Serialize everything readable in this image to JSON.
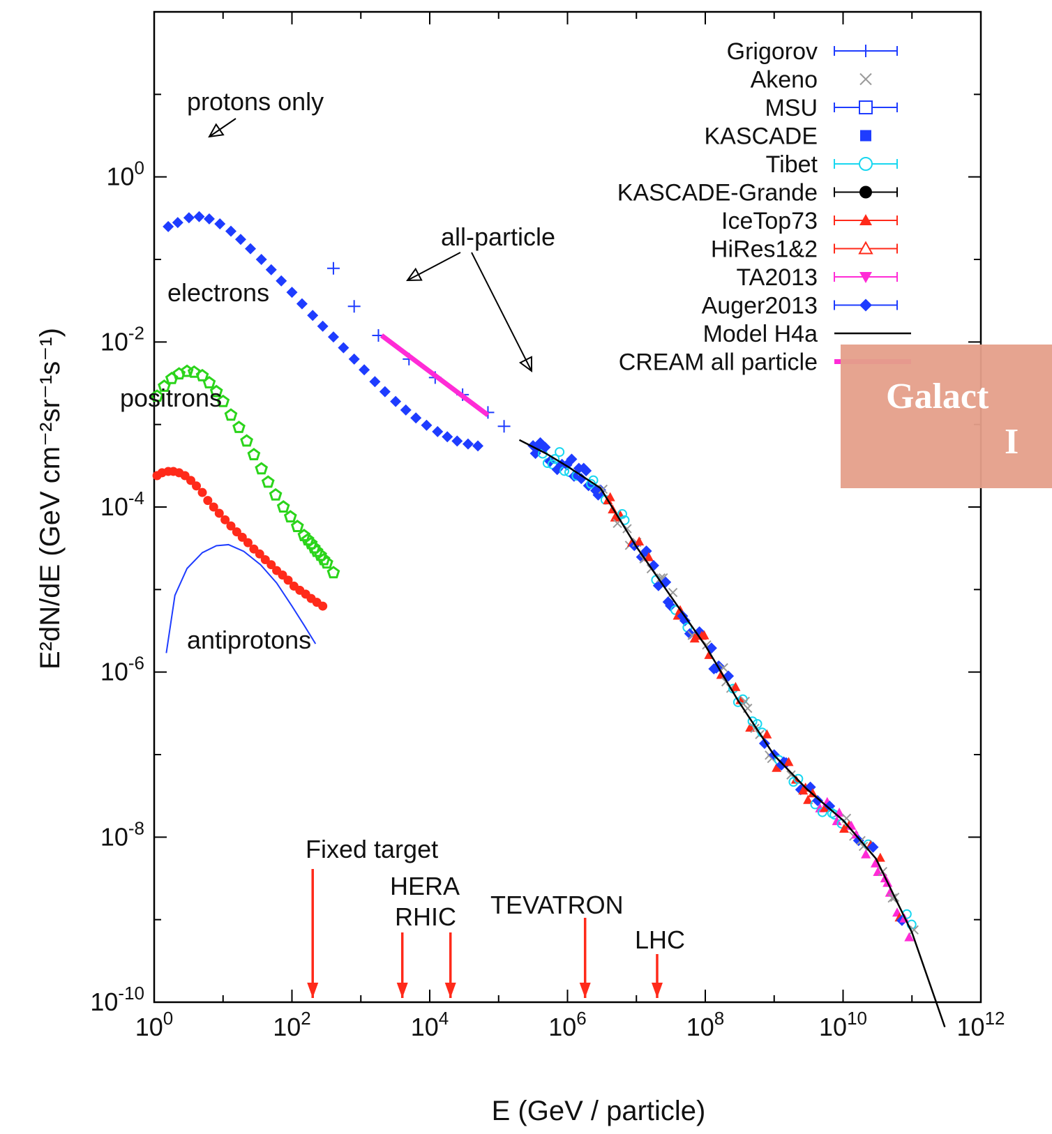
{
  "chart_data": {
    "type": "scatter",
    "xlabel": "E   (GeV / particle)",
    "ylabel": "E²dN/dE   (GeV cm⁻²sr⁻¹s⁻¹)",
    "x_scale": "log",
    "y_scale": "log",
    "xlim": [
      1,
      1000000000000.0
    ],
    "ylim": [
      1e-10,
      100.0
    ],
    "grid": false,
    "legend_position": "top-right",
    "x_ticks": [
      {
        "value": 1,
        "base": "10",
        "exp": "0"
      },
      {
        "value": 100,
        "base": "10",
        "exp": "2"
      },
      {
        "value": 10000,
        "base": "10",
        "exp": "4"
      },
      {
        "value": 1000000,
        "base": "10",
        "exp": "6"
      },
      {
        "value": 100000000,
        "base": "10",
        "exp": "8"
      },
      {
        "value": 10000000000,
        "base": "10",
        "exp": "10"
      },
      {
        "value": 1000000000000,
        "base": "10",
        "exp": "12"
      }
    ],
    "y_ticks": [
      {
        "value": 1,
        "base": "10",
        "exp": "0"
      },
      {
        "value": 0.01,
        "base": "10",
        "exp": "-2"
      },
      {
        "value": 0.0001,
        "base": "10",
        "exp": "-4"
      },
      {
        "value": 1e-06,
        "base": "10",
        "exp": "-6"
      },
      {
        "value": 1e-08,
        "base": "10",
        "exp": "-8"
      },
      {
        "value": 1e-10,
        "base": "10",
        "exp": "-10"
      }
    ],
    "legend": [
      {
        "name": "Grigorov",
        "color": "#1e3cff",
        "marker": "plus"
      },
      {
        "name": "Akeno",
        "color": "#9a9a9a",
        "marker": "cross"
      },
      {
        "name": "MSU",
        "color": "#1e3cff",
        "marker": "open-square"
      },
      {
        "name": "KASCADE",
        "color": "#1e3cff",
        "marker": "filled-square"
      },
      {
        "name": "Tibet",
        "color": "#19d7f0",
        "marker": "open-circle"
      },
      {
        "name": "KASCADE-Grande",
        "color": "#000000",
        "marker": "filled-circle"
      },
      {
        "name": "IceTop73",
        "color": "#ff2a1a",
        "marker": "filled-triangle"
      },
      {
        "name": "HiRes1&2",
        "color": "#ff2a1a",
        "marker": "open-triangle"
      },
      {
        "name": "TA2013",
        "color": "#ff2bd6",
        "marker": "filled-down-triangle"
      },
      {
        "name": "Auger2013",
        "color": "#1e3cff",
        "marker": "filled-diamond"
      },
      {
        "name": "Model H4a",
        "color": "#000000",
        "marker": "line"
      },
      {
        "name": "CREAM all particle",
        "color": "#ff2bd6",
        "marker": "thick-line"
      }
    ],
    "series": {
      "protons": {
        "label": "protons only",
        "color": "#1e3cff",
        "x": [
          1.6,
          2.2,
          3.2,
          4.5,
          6.3,
          9,
          13,
          18,
          25,
          36,
          50,
          70,
          100,
          140,
          200,
          280,
          400,
          560,
          800,
          1120,
          1600,
          2240,
          3200,
          4500,
          6300,
          9000,
          13000,
          18000,
          25000,
          36000,
          50000
        ],
        "y": [
          0.25,
          0.28,
          0.32,
          0.33,
          0.31,
          0.27,
          0.22,
          0.175,
          0.135,
          0.1,
          0.075,
          0.055,
          0.04,
          0.029,
          0.021,
          0.0155,
          0.0115,
          0.0085,
          0.0062,
          0.0046,
          0.0033,
          0.0025,
          0.0019,
          0.0015,
          0.0012,
          0.00098,
          0.00082,
          0.00071,
          0.00063,
          0.00058,
          0.00055
        ]
      },
      "electrons": {
        "label": "electrons",
        "color": "#2bd41b",
        "x": [
          1.1,
          1.4,
          1.8,
          2.3,
          3,
          3.8,
          5,
          6.3,
          8,
          10,
          13,
          17,
          22,
          28,
          36,
          45,
          58,
          75,
          95,
          120,
          150,
          170,
          190,
          210,
          230,
          260,
          290,
          320,
          400
        ],
        "y": [
          0.0022,
          0.0029,
          0.0036,
          0.0041,
          0.0044,
          0.0043,
          0.0039,
          0.0032,
          0.0025,
          0.0019,
          0.0013,
          0.00092,
          0.00063,
          0.00043,
          0.00029,
          0.0002,
          0.00014,
          0.0001,
          7.6e-05,
          5.8e-05,
          4.5e-05,
          4e-05,
          3.6e-05,
          3.2e-05,
          2.9e-05,
          2.6e-05,
          2.3e-05,
          2.1e-05,
          1.6e-05
        ]
      },
      "positrons": {
        "label": "positrons",
        "color": "#ff2a1a",
        "x": [
          1.1,
          1.3,
          1.6,
          1.9,
          2.3,
          2.8,
          3.4,
          4.1,
          5,
          6,
          7.3,
          8.8,
          10.7,
          13,
          15.8,
          19,
          23,
          28,
          34,
          41,
          50,
          60,
          73,
          88,
          107,
          130,
          158,
          190,
          230,
          280
        ],
        "y": [
          0.00024,
          0.00026,
          0.00027,
          0.00027,
          0.00026,
          0.00024,
          0.00021,
          0.00018,
          0.00015,
          0.00012,
          0.0001,
          8.4e-05,
          7e-05,
          5.9e-05,
          5e-05,
          4.3e-05,
          3.7e-05,
          3.1e-05,
          2.7e-05,
          2.3e-05,
          2e-05,
          1.7e-05,
          1.5e-05,
          1.3e-05,
          1.1e-05,
          9.8e-06,
          8.8e-06,
          7.8e-06,
          7e-06,
          6.3e-06
        ]
      },
      "antiprotons": {
        "label": "antiprotons",
        "color": "#1e3cff",
        "x": [
          1.5,
          2,
          3,
          5,
          8,
          12,
          20,
          35,
          60,
          100,
          150,
          220
        ],
        "y": 1.8e-06
      },
      "antiprotons_curve": {
        "x": [
          1.5,
          2,
          3,
          5,
          8,
          12,
          20,
          35,
          60,
          100,
          150,
          220
        ],
        "y": [
          1.7e-06,
          8.5e-06,
          1.8e-05,
          2.8e-05,
          3.4e-05,
          3.5e-05,
          2.9e-05,
          2e-05,
          1.2e-05,
          6.3e-06,
          3.7e-06,
          2.2e-06
        ]
      },
      "all_particle": {
        "label": "all-particle",
        "color": "#000000",
        "x": [
          200000,
          500000,
          1000000,
          3000000,
          5000000,
          10000000,
          30000000,
          100000000,
          300000000,
          1000000000,
          3000000000,
          10000000000,
          30000000000,
          100000000000,
          300000000000
        ],
        "y": [
          0.00065,
          0.00044,
          0.00031,
          0.00017,
          8.5e-05,
          3.3e-05,
          8.8e-06,
          2.1e-06,
          4.5e-07,
          9.8e-08,
          3.8e-08,
          1.6e-08,
          5.5e-09,
          7e-10,
          5e-11
        ]
      },
      "cream": {
        "x": [
          2000,
          70000
        ],
        "y": [
          0.012,
          0.0013
        ]
      },
      "grigorov_points": {
        "x": [
          400,
          800,
          1800,
          5000,
          12000,
          30000,
          70000,
          120000
        ],
        "y": [
          0.078,
          0.027,
          0.012,
          0.0062,
          0.0037,
          0.0023,
          0.0014,
          0.00095
        ]
      }
    },
    "annotations": [
      {
        "text": "protons only"
      },
      {
        "text": "electrons"
      },
      {
        "text": "positrons"
      },
      {
        "text": "antiprotons"
      },
      {
        "text": "all-particle"
      },
      {
        "text": "Fixed target"
      },
      {
        "text": "HERA"
      },
      {
        "text": "RHIC"
      },
      {
        "text": "TEVATRON"
      },
      {
        "text": "LHC"
      }
    ],
    "accelerators": [
      {
        "name": "Fixed target",
        "energy": 200
      },
      {
        "name": "HERA",
        "energy": 4000
      },
      {
        "name": "RHIC",
        "energy": 20000
      },
      {
        "name": "TEVATRON",
        "energy": 1800000
      },
      {
        "name": "LHC",
        "energy": 20000000
      }
    ]
  },
  "overlay": {
    "line1": "Galact",
    "line2": "I",
    "color": "#e59f8a"
  }
}
